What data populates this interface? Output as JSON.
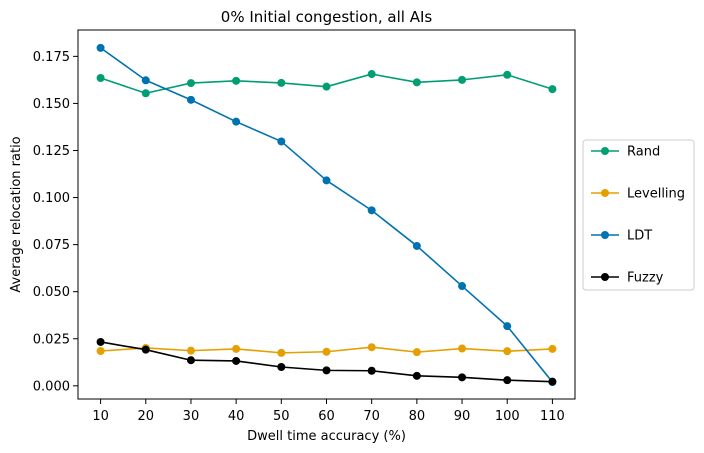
{
  "chart_data": {
    "type": "line",
    "title": "0% Initial congestion, all AIs",
    "xlabel": "Dwell time accuracy (%)",
    "ylabel": "Average relocation ratio",
    "x": [
      10,
      20,
      30,
      40,
      50,
      60,
      70,
      80,
      90,
      100,
      110
    ],
    "x_ticks": [
      "10",
      "20",
      "30",
      "40",
      "50",
      "60",
      "70",
      "80",
      "90",
      "100",
      "110"
    ],
    "y_ticks": [
      "0.000",
      "0.025",
      "0.050",
      "0.075",
      "0.100",
      "0.125",
      "0.150",
      "0.175"
    ],
    "xlim": [
      5,
      115
    ],
    "ylim": [
      -0.007,
      0.189
    ],
    "grid": false,
    "legend_position": "center-right-outside",
    "series": [
      {
        "name": "Rand",
        "color": "#009e73",
        "values": [
          0.1635,
          0.1554,
          0.1608,
          0.162,
          0.1609,
          0.1589,
          0.1656,
          0.1612,
          0.1625,
          0.1652,
          0.1576
        ]
      },
      {
        "name": "Levelling",
        "color": "#e69f00",
        "values": [
          0.0185,
          0.0201,
          0.0187,
          0.0196,
          0.0175,
          0.0181,
          0.0205,
          0.0179,
          0.0198,
          0.0184,
          0.0196
        ]
      },
      {
        "name": "LDT",
        "color": "#0072b2",
        "values": [
          0.1795,
          0.1623,
          0.1519,
          0.1403,
          0.1298,
          0.1091,
          0.0932,
          0.0743,
          0.053,
          0.0317,
          0.002
        ]
      },
      {
        "name": "Fuzzy",
        "color": "#000000",
        "values": [
          0.0233,
          0.0192,
          0.0136,
          0.0132,
          0.01,
          0.0082,
          0.008,
          0.0053,
          0.0045,
          0.003,
          0.0022
        ]
      }
    ]
  }
}
